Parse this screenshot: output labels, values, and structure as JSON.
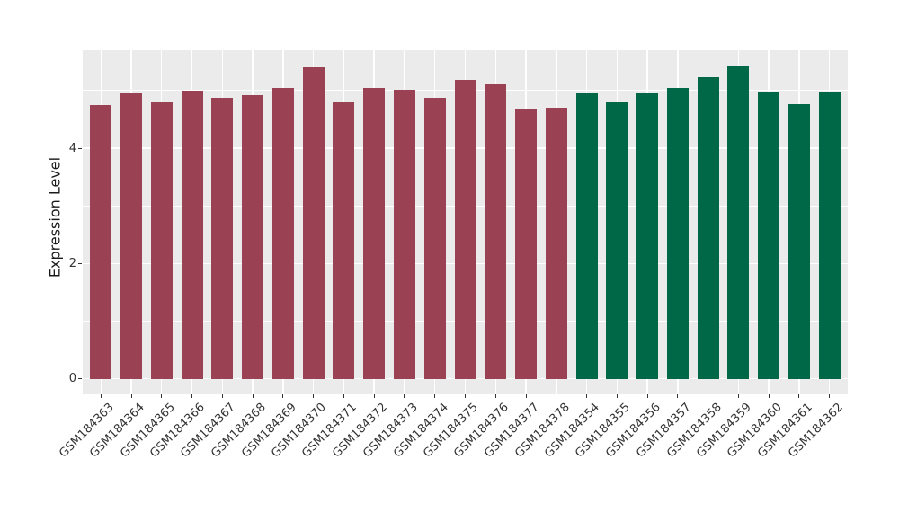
{
  "chart_data": {
    "type": "bar",
    "title": "",
    "xlabel": "",
    "ylabel": "Expression Level",
    "categories": [
      "GSM184363",
      "GSM184364",
      "GSM184365",
      "GSM184366",
      "GSM184367",
      "GSM184368",
      "GSM184369",
      "GSM184370",
      "GSM184371",
      "GSM184372",
      "GSM184373",
      "GSM184374",
      "GSM184375",
      "GSM184376",
      "GSM184377",
      "GSM184378",
      "GSM184354",
      "GSM184355",
      "GSM184356",
      "GSM184357",
      "GSM184358",
      "GSM184359",
      "GSM184360",
      "GSM184361",
      "GSM184362"
    ],
    "values": [
      4.75,
      4.95,
      4.8,
      5.0,
      4.88,
      4.92,
      5.05,
      5.4,
      4.8,
      5.05,
      5.02,
      4.87,
      5.18,
      5.11,
      4.68,
      4.7,
      4.95,
      4.81,
      4.97,
      5.05,
      5.23,
      5.42,
      4.98,
      4.77,
      4.99
    ],
    "group_of_bar": [
      "group1",
      "group1",
      "group1",
      "group1",
      "group1",
      "group1",
      "group1",
      "group1",
      "group1",
      "group1",
      "group1",
      "group1",
      "group1",
      "group1",
      "group1",
      "group1",
      "group2",
      "group2",
      "group2",
      "group2",
      "group2",
      "group2",
      "group2",
      "group2",
      "group2"
    ],
    "group_colors": {
      "group1": "#9A4254",
      "group2": "#006847"
    },
    "yticks": [
      0,
      2,
      4
    ],
    "minor_gridlines": [
      1,
      3,
      5
    ],
    "ylim": [
      -0.27,
      5.7
    ],
    "grid_on": true,
    "legend": "none",
    "style": {
      "panel_bg": "#EBEBEB",
      "grid_color": "#FFFFFF",
      "tick_color": "#333333",
      "axis_text_color": "#333333",
      "axis_title_color": "#1a1a1a"
    }
  }
}
